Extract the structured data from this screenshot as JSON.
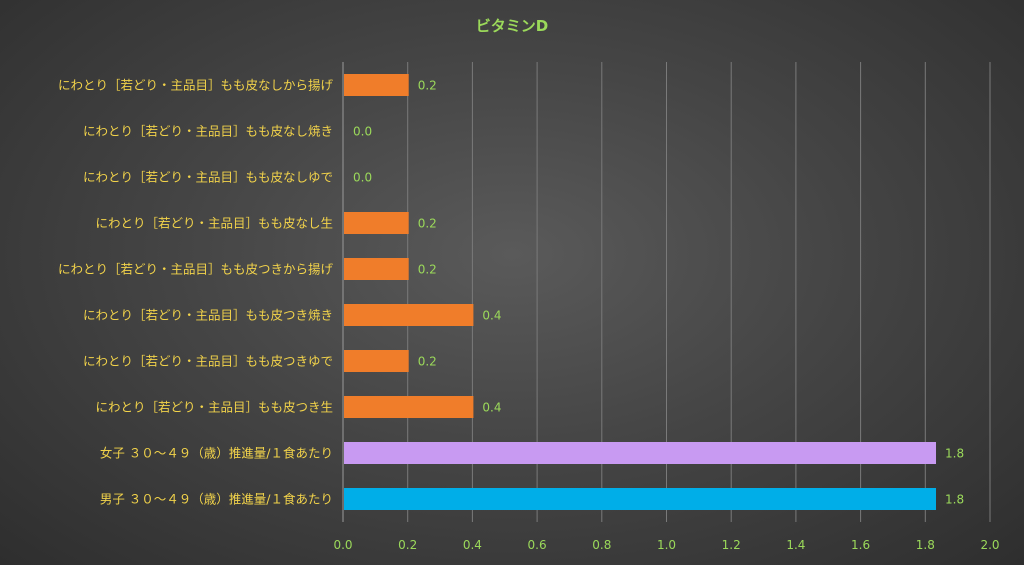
{
  "chart_data": {
    "type": "bar",
    "orientation": "horizontal",
    "title": "ビタミンD",
    "xlabel": "",
    "ylabel": "",
    "xlim": [
      0,
      2.0
    ],
    "x_ticks": [
      "0.0",
      "0.2",
      "0.4",
      "0.6",
      "0.8",
      "1.0",
      "1.2",
      "1.4",
      "1.6",
      "1.8",
      "2.0"
    ],
    "grid": true,
    "legend": "none",
    "categories": [
      "にわとり［若どり・主品目］もも皮なしから揚げ",
      "にわとり［若どり・主品目］もも皮なし焼き",
      "にわとり［若どり・主品目］もも皮なしゆで",
      "にわとり［若どり・主品目］もも皮なし生",
      "にわとり［若どり・主品目］もも皮つきから揚げ",
      "にわとり［若どり・主品目］もも皮つき焼き",
      "にわとり［若どり・主品目］もも皮つきゆで",
      "にわとり［若どり・主品目］もも皮つき生",
      "女子 ３０～４９（歳）推進量/１食あたり",
      "男子 ３０～４９（歳）推進量/１食あたり"
    ],
    "values": [
      0.2,
      0.0,
      0.0,
      0.2,
      0.2,
      0.4,
      0.2,
      0.4,
      1.83,
      1.83
    ],
    "value_labels": [
      "0.2",
      "0.0",
      "0.0",
      "0.2",
      "0.2",
      "0.4",
      "0.2",
      "0.4",
      "1.8",
      "1.8"
    ],
    "colors": [
      "#f07d2a",
      "#f07d2a",
      "#f07d2a",
      "#f07d2a",
      "#f07d2a",
      "#f07d2a",
      "#f07d2a",
      "#f07d2a",
      "#c89af2",
      "#00aee8"
    ]
  }
}
